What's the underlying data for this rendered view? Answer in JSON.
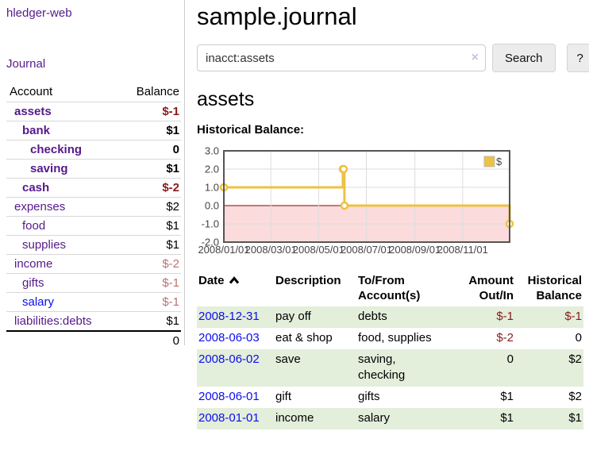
{
  "app": {
    "brand": "hledger-web"
  },
  "colors": {
    "link_purple": "#551a8b",
    "link_blue": "#0d0dee",
    "negative_strong": "#8b1a1a",
    "negative_muted": "#b87474",
    "row_green": "#e3eedb",
    "grid_line": "#dddddd",
    "chart_border": "#555555"
  },
  "sidebar": {
    "journal_link": "Journal",
    "accounts_table": {
      "headers": {
        "account": "Account",
        "balance": "Balance"
      },
      "rows": [
        {
          "name": "assets",
          "balance": "$-1",
          "depth": 1,
          "bold": true,
          "negative": true
        },
        {
          "name": "bank",
          "balance": "$1",
          "depth": 2,
          "bold": true,
          "negative": false
        },
        {
          "name": "checking",
          "balance": "0",
          "depth": 3,
          "bold": true,
          "negative": false
        },
        {
          "name": "saving",
          "balance": "$1",
          "depth": 3,
          "bold": true,
          "negative": false
        },
        {
          "name": "cash",
          "balance": "$-2",
          "depth": 2,
          "bold": true,
          "negative": true
        },
        {
          "name": "expenses",
          "balance": "$2",
          "depth": 1,
          "bold": false,
          "negative": false
        },
        {
          "name": "food",
          "balance": "$1",
          "depth": 2,
          "bold": false,
          "negative": false
        },
        {
          "name": "supplies",
          "balance": "$1",
          "depth": 2,
          "bold": false,
          "negative": false
        },
        {
          "name": "income",
          "balance": "$-2",
          "depth": 1,
          "bold": false,
          "negative": true
        },
        {
          "name": "gifts",
          "balance": "$-1",
          "depth": 2,
          "bold": false,
          "negative": true
        },
        {
          "name": "salary",
          "balance": "$-1",
          "depth": 2,
          "bold": false,
          "negative": true,
          "blue_link": true
        },
        {
          "name": "liabilities:debts",
          "balance": "$1",
          "depth": 1,
          "bold": false,
          "negative": false
        }
      ],
      "total": "0"
    }
  },
  "main": {
    "title": "sample.journal",
    "search": {
      "value": "inacct:assets",
      "clear_icon": "×",
      "search_button": "Search",
      "help_button": "?"
    },
    "account_heading": "assets",
    "chart_label": "Historical Balance:"
  },
  "chart_data": {
    "type": "line",
    "title": "Historical Balance",
    "step": true,
    "xlim": [
      "2008-01-01",
      "2008-12-31"
    ],
    "ylim": [
      -2,
      3
    ],
    "yticks": [
      3.0,
      2.0,
      1.0,
      0.0,
      -1.0,
      -2.0
    ],
    "xticks": [
      "2008/01/01",
      "2008/03/01",
      "2008/05/01",
      "2008/07/01",
      "2008/09/01",
      "2008/11/01"
    ],
    "grid": true,
    "legend": {
      "label": "$",
      "position": "top-right"
    },
    "zero_line_color": "#8b0000",
    "negative_region_color": "#fbdbdb",
    "series": [
      {
        "name": "$",
        "color": "#edc240",
        "points": [
          {
            "date": "2008-01-01",
            "value": 1
          },
          {
            "date": "2008-06-01",
            "value": 2
          },
          {
            "date": "2008-06-02",
            "value": 2
          },
          {
            "date": "2008-06-03",
            "value": 0
          },
          {
            "date": "2008-12-31",
            "value": -1
          }
        ]
      }
    ]
  },
  "register": {
    "headers": {
      "date": "Date",
      "description": "Description",
      "accounts": "To/From Account(s)",
      "amount": "Amount Out/In",
      "balance": "Historical Balance"
    },
    "sort": {
      "column": "Date",
      "direction": "ascending"
    },
    "rows": [
      {
        "date": "2008-12-31",
        "description": "pay off",
        "accounts": "debts",
        "amount": "$-1",
        "balance": "$-1",
        "amount_negative": true,
        "balance_negative": true
      },
      {
        "date": "2008-06-03",
        "description": "eat & shop",
        "accounts": "food, supplies",
        "amount": "$-2",
        "balance": "0",
        "amount_negative": true,
        "balance_negative": false
      },
      {
        "date": "2008-06-02",
        "description": "save",
        "accounts": "saving, checking",
        "amount": "0",
        "balance": "$2",
        "amount_negative": false,
        "balance_negative": false
      },
      {
        "date": "2008-06-01",
        "description": "gift",
        "accounts": "gifts",
        "amount": "$1",
        "balance": "$2",
        "amount_negative": false,
        "balance_negative": false
      },
      {
        "date": "2008-01-01",
        "description": "income",
        "accounts": "salary",
        "amount": "$1",
        "balance": "$1",
        "amount_negative": false,
        "balance_negative": false
      }
    ]
  }
}
